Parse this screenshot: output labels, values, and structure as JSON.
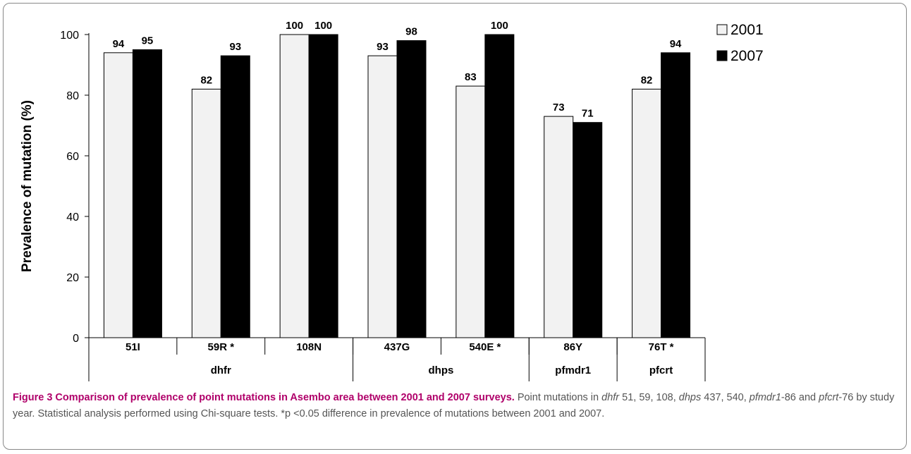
{
  "chart_data": {
    "type": "bar",
    "ylabel": "Prevalence of mutation (%)",
    "ylim": [
      0,
      100
    ],
    "yticks": [
      0,
      20,
      40,
      60,
      80,
      100
    ],
    "grid": false,
    "legend_position": "top-right",
    "categories": [
      "51I",
      "59R *",
      "108N",
      "437G",
      "540E *",
      "86Y",
      "76T *"
    ],
    "groups": [
      {
        "label": "dhfr",
        "span": 3
      },
      {
        "label": "dhps",
        "span": 2
      },
      {
        "label": "pfmdr1",
        "span": 1
      },
      {
        "label": "pfcrt",
        "span": 1
      }
    ],
    "series": [
      {
        "name": "2001",
        "color": "#f2f2f2",
        "values": [
          94,
          82,
          100,
          93,
          83,
          73,
          82
        ],
        "labels": [
          "94",
          "82",
          "100",
          "93",
          "83",
          "73",
          "82"
        ]
      },
      {
        "name": "2007",
        "color": "#000000",
        "values": [
          95,
          93,
          100,
          98,
          100,
          71,
          94
        ],
        "labels": [
          "95",
          "93",
          "100",
          "98",
          "100",
          "71",
          "94"
        ]
      }
    ]
  },
  "caption": {
    "title": "Figure 3 Comparison of prevalence of point mutations in Asembo area between 2001 and 2007 surveys.",
    "t1": " Point mutations in ",
    "g1": "dhfr",
    "t2": " 51, 59, 108, ",
    "g2": "dhps",
    "t3": " 437, 540, ",
    "g3": "pfmdr1",
    "t4": "-86 and ",
    "g4": "pfcrt",
    "t5": "-76 by study year. Statistical analysis performed using Chi-square tests. *p <0.05 difference in prevalence of mutations between 2001 and 2007."
  }
}
